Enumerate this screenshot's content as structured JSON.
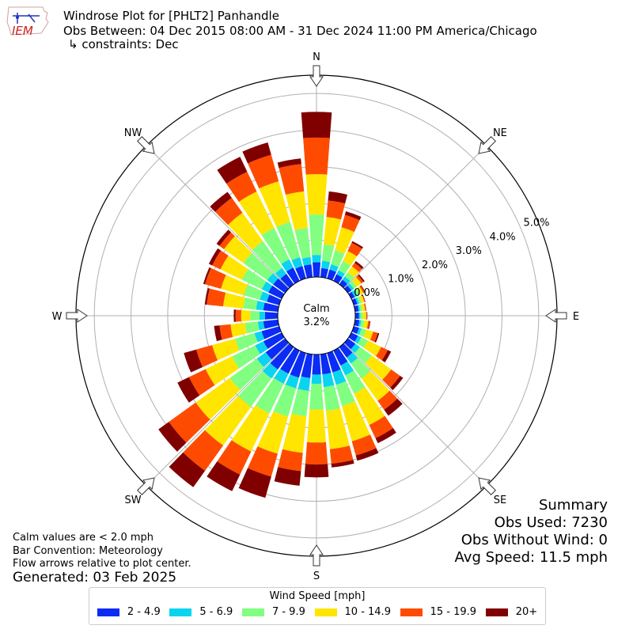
{
  "header": {
    "title": "Windrose Plot for [PHLT2] Panhandle",
    "obs_between": "Obs Between: 04 Dec 2015 08:00 AM - 31 Dec 2024 11:00 PM America/Chicago",
    "constraints": "↳ constraints: Dec"
  },
  "logo": {
    "text": "IEM",
    "color": "#cc2222"
  },
  "center": {
    "label": "Calm",
    "value": "3.2%"
  },
  "notes": {
    "line1": "Calm values are < 2.0 mph",
    "line2": "Bar Convention: Meteorology",
    "line3": "Flow arrows relative to plot center.",
    "generated": "Generated: 03 Feb 2025"
  },
  "summary": {
    "title": "Summary",
    "obs_used": "Obs Used: 7230",
    "obs_without_wind": "Obs Without Wind: 0",
    "avg_speed": "Avg Speed: 11.5 mph"
  },
  "chart_data": {
    "type": "windrose",
    "title": "Windrose Plot for [PHLT2] Panhandle",
    "directions": [
      "N",
      "NE",
      "E",
      "SE",
      "S",
      "SW",
      "W",
      "NW"
    ],
    "radial_ticks": [
      "0.0%",
      "1.0%",
      "2.0%",
      "3.0%",
      "4.0%",
      "5.0%"
    ],
    "radial_max": 5.5,
    "calm_pct": 3.2,
    "legend_title": "Wind Speed [mph]",
    "bins": [
      {
        "label": "2 - 4.9",
        "color": "#0a2cf5"
      },
      {
        "label": "5 - 6.9",
        "color": "#0ad4ef"
      },
      {
        "label": "7 - 9.9",
        "color": "#80ff80"
      },
      {
        "label": "10 - 14.9",
        "color": "#ffe500"
      },
      {
        "label": "15 - 19.9",
        "color": "#ff4b00"
      },
      {
        "label": "20+",
        "color": "#800000"
      }
    ],
    "bar_directions_deg": [
      0,
      10,
      20,
      30,
      40,
      50,
      60,
      70,
      80,
      90,
      100,
      110,
      120,
      130,
      140,
      150,
      160,
      170,
      180,
      190,
      200,
      210,
      220,
      230,
      240,
      250,
      260,
      270,
      280,
      290,
      300,
      310,
      320,
      330,
      340,
      350
    ],
    "cumulative_pct": [
      [
        0.4,
        0.6,
        1.7,
        2.8,
        3.8,
        4.5
      ],
      [
        0.25,
        0.45,
        0.9,
        1.65,
        2.1,
        2.35
      ],
      [
        0.25,
        0.4,
        0.8,
        1.45,
        1.8,
        1.9
      ],
      [
        0.2,
        0.32,
        0.6,
        0.9,
        1.15,
        1.2
      ],
      [
        0.15,
        0.26,
        0.4,
        0.6,
        0.72,
        0.78
      ],
      [
        0.12,
        0.2,
        0.3,
        0.45,
        0.52,
        0.56
      ],
      [
        0.1,
        0.18,
        0.26,
        0.36,
        0.4,
        0.42
      ],
      [
        0.1,
        0.15,
        0.22,
        0.3,
        0.32,
        0.33
      ],
      [
        0.1,
        0.14,
        0.2,
        0.28,
        0.3,
        0.31
      ],
      [
        0.1,
        0.14,
        0.2,
        0.3,
        0.32,
        0.33
      ],
      [
        0.12,
        0.17,
        0.25,
        0.36,
        0.4,
        0.42
      ],
      [
        0.15,
        0.22,
        0.35,
        0.55,
        0.68,
        0.72
      ],
      [
        0.2,
        0.3,
        0.5,
        0.9,
        1.1,
        1.2
      ],
      [
        0.25,
        0.4,
        0.8,
        1.45,
        1.75,
        1.85
      ],
      [
        0.35,
        0.55,
        1.05,
        1.8,
        2.1,
        2.3
      ],
      [
        0.45,
        0.75,
        1.3,
        2.25,
        2.65,
        2.8
      ],
      [
        0.55,
        0.9,
        1.5,
        2.5,
        2.9,
        3.05
      ],
      [
        0.55,
        0.9,
        1.55,
        2.6,
        3.0,
        3.1
      ],
      [
        0.55,
        0.8,
        1.5,
        2.4,
        3.0,
        3.35
      ],
      [
        0.65,
        1.0,
        1.7,
        2.7,
        3.2,
        3.6
      ],
      [
        0.7,
        1.0,
        1.8,
        2.85,
        3.5,
        4.1
      ],
      [
        0.7,
        1.0,
        1.9,
        3.05,
        3.75,
        4.25
      ],
      [
        0.75,
        1.05,
        2.0,
        3.3,
        4.15,
        4.7
      ],
      [
        0.65,
        0.95,
        1.85,
        3.0,
        3.9,
        4.25
      ],
      [
        0.55,
        0.8,
        1.5,
        2.3,
        2.8,
        3.15
      ],
      [
        0.5,
        0.7,
        1.25,
        1.9,
        2.35,
        2.7
      ],
      [
        0.4,
        0.55,
        0.9,
        1.3,
        1.6,
        1.75
      ],
      [
        0.35,
        0.5,
        0.75,
        1.0,
        1.15,
        1.2
      ],
      [
        0.4,
        0.6,
        0.95,
        1.5,
        1.95,
        2.0
      ],
      [
        0.35,
        0.55,
        1.0,
        1.65,
        2.1,
        2.15
      ],
      [
        0.4,
        0.6,
        1.2,
        1.85,
        2.1,
        2.2
      ],
      [
        0.4,
        0.6,
        1.4,
        2.05,
        2.2,
        2.3
      ],
      [
        0.35,
        0.55,
        1.45,
        2.4,
        2.9,
        3.1
      ],
      [
        0.4,
        0.65,
        1.6,
        2.7,
        3.3,
        3.75
      ],
      [
        0.35,
        0.6,
        1.6,
        2.75,
        3.5,
        3.85
      ],
      [
        0.35,
        0.55,
        1.35,
        2.35,
        3.1,
        3.25
      ]
    ]
  }
}
